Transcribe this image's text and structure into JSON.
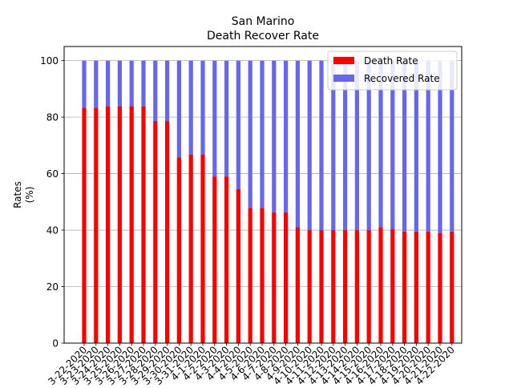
{
  "chart_data": {
    "type": "bar",
    "stacked": true,
    "title": "San Marino",
    "subtitle": "Death Recover Rate",
    "xlabel": "",
    "ylabel": "Rates\n(%)",
    "ylim": [
      0,
      105
    ],
    "yticks": [
      0,
      20,
      40,
      60,
      80,
      100
    ],
    "grid": "y",
    "legend_position": "top-right",
    "categories": [
      "3-22-2020",
      "3-23-2020",
      "3-24-2020",
      "3-25-2020",
      "3-26-2020",
      "3-27-2020",
      "3-28-2020",
      "3-29-2020",
      "3-30-2020",
      "3-31-2020",
      "4-1-2020",
      "4-2-2020",
      "4-3-2020",
      "4-4-2020",
      "4-5-2020",
      "4-6-2020",
      "4-7-2020",
      "4-8-2020",
      "4-9-2020",
      "4-10-2020",
      "4-11-2020",
      "4-12-2020",
      "4-13-2020",
      "4-14-2020",
      "4-15-2020",
      "4-16-2020",
      "4-17-2020",
      "4-18-2020",
      "4-19-2020",
      "4-20-2020",
      "4-21-2020",
      "4-22-2020"
    ],
    "series": [
      {
        "name": "Death Rate",
        "color": "#ff0000",
        "values": [
          83.3,
          83.3,
          83.9,
          83.9,
          83.9,
          83.9,
          78.6,
          78.6,
          65.7,
          66.7,
          66.7,
          59.0,
          59.0,
          54.5,
          47.9,
          47.9,
          46.3,
          46.3,
          41.0,
          40.0,
          40.0,
          40.0,
          40.0,
          40.0,
          40.0,
          41.0,
          40.3,
          39.5,
          39.5,
          39.5,
          39.0,
          39.5
        ]
      },
      {
        "name": "Recovered Rate",
        "color": "#6666ee",
        "values": [
          16.7,
          16.7,
          16.1,
          16.1,
          16.1,
          16.1,
          21.4,
          21.4,
          34.3,
          33.3,
          33.3,
          41.0,
          41.0,
          45.5,
          52.1,
          52.1,
          53.7,
          53.7,
          59.0,
          60.0,
          60.0,
          60.0,
          60.0,
          60.0,
          60.0,
          59.0,
          59.7,
          60.5,
          60.5,
          60.5,
          61.0,
          60.5
        ]
      }
    ]
  }
}
